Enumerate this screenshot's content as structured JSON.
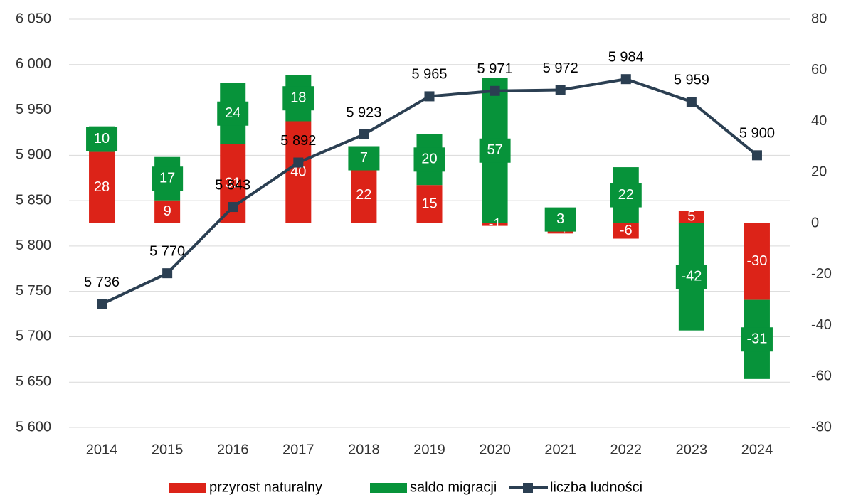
{
  "chart_data": {
    "type": "combo",
    "categories": [
      "2014",
      "2015",
      "2016",
      "2017",
      "2018",
      "2019",
      "2020",
      "2021",
      "2022",
      "2023",
      "2024"
    ],
    "series": [
      {
        "name": "przyrost naturalny",
        "type": "bar",
        "axis": "y2",
        "color": "#dc2318",
        "values": [
          28,
          9,
          31,
          40,
          22,
          15,
          -1,
          -4,
          -6,
          5,
          -30
        ]
      },
      {
        "name": "saldo migracji",
        "type": "bar",
        "axis": "y2",
        "color": "#07933a",
        "values": [
          10,
          17,
          24,
          18,
          7,
          20,
          57,
          3,
          22,
          -42,
          -31
        ]
      },
      {
        "name": "liczba ludności",
        "type": "line",
        "axis": "y",
        "color": "#2b3f52",
        "values": [
          5736,
          5770,
          5843,
          5892,
          5923,
          5965,
          5971,
          5972,
          5984,
          5959,
          5900
        ],
        "value_labels": [
          "5 736",
          "5 770",
          "5 843",
          "5 892",
          "5 923",
          "5 965",
          "5 971",
          "5 972",
          "5 984",
          "5 959",
          "5 900"
        ]
      }
    ],
    "ylim": [
      5600,
      6050
    ],
    "yticks": [
      {
        "value": 5600,
        "label": "5 600"
      },
      {
        "value": 5650,
        "label": "5 650"
      },
      {
        "value": 5700,
        "label": "5 700"
      },
      {
        "value": 5750,
        "label": "5 750"
      },
      {
        "value": 5800,
        "label": "5 800"
      },
      {
        "value": 5850,
        "label": "5 850"
      },
      {
        "value": 5900,
        "label": "5 900"
      },
      {
        "value": 5950,
        "label": "5 950"
      },
      {
        "value": 6000,
        "label": "6 000"
      },
      {
        "value": 6050,
        "label": "6 050"
      }
    ],
    "y2lim": [
      -80,
      80
    ],
    "y2ticks": [
      -80,
      -60,
      -40,
      -20,
      0,
      20,
      40,
      60,
      80
    ],
    "grid": true,
    "legend": "bottom"
  }
}
